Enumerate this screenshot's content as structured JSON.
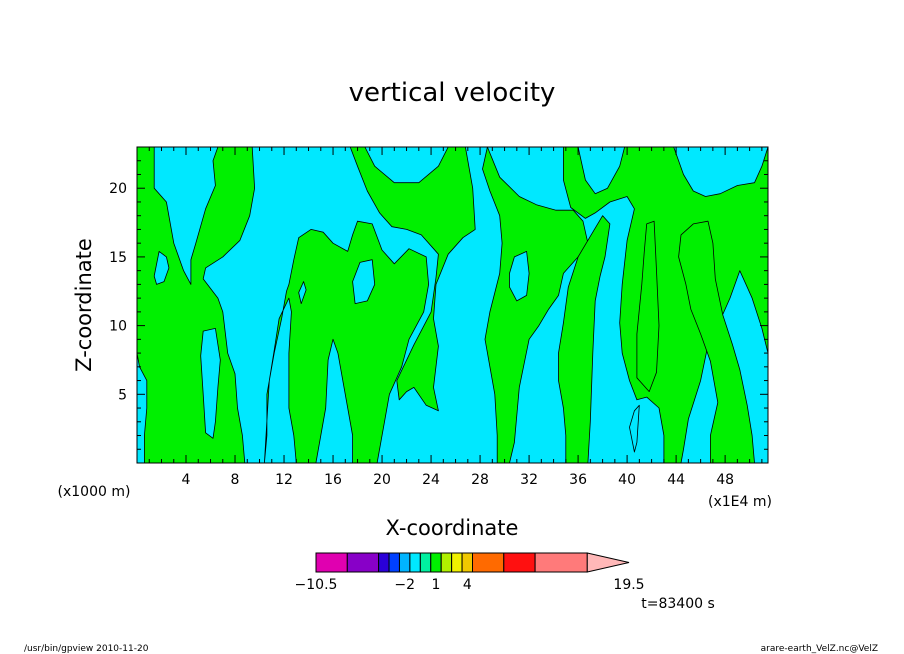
{
  "chart_data": {
    "type": "heatmap",
    "title": "vertical velocity",
    "xlabel": "X-coordinate",
    "ylabel": "Z-coordinate",
    "x_unit_left": "(x1000 m)",
    "x_unit_right": "(x1E4 m)",
    "xlim": [
      0,
      51.5
    ],
    "ylim": [
      0,
      23
    ],
    "x_ticks": [
      4,
      8,
      12,
      16,
      20,
      24,
      28,
      32,
      36,
      40,
      44,
      48
    ],
    "y_ticks": [
      5,
      10,
      15,
      20
    ],
    "grid": false,
    "colorbar": {
      "orientation": "horizontal",
      "min": -10.5,
      "max": 19.5,
      "tick_labels": [
        "-10.5",
        "-2",
        "1",
        "4",
        "19.5"
      ],
      "bins": [
        {
          "from": -10.5,
          "to": -7.5,
          "color": "#e000b0"
        },
        {
          "from": -7.5,
          "to": -4.5,
          "color": "#8800c8"
        },
        {
          "from": -4.5,
          "to": -3.5,
          "color": "#2a00d8"
        },
        {
          "from": -3.5,
          "to": -2.5,
          "color": "#0040ff"
        },
        {
          "from": -2.5,
          "to": -1.5,
          "color": "#00b4ff"
        },
        {
          "from": -1.5,
          "to": -0.5,
          "color": "#00e8ff"
        },
        {
          "from": -0.5,
          "to": 0.5,
          "color": "#00f0a0"
        },
        {
          "from": 0.5,
          "to": 1.5,
          "color": "#00f000"
        },
        {
          "from": 1.5,
          "to": 2.5,
          "color": "#b0f000"
        },
        {
          "from": 2.5,
          "to": 3.5,
          "color": "#f0f000"
        },
        {
          "from": 3.5,
          "to": 4.5,
          "color": "#f0c800"
        },
        {
          "from": 4.5,
          "to": 7.5,
          "color": "#ff6a00"
        },
        {
          "from": 7.5,
          "to": 10.5,
          "color": "#ff1010"
        },
        {
          "from": 10.5,
          "to": 15.5,
          "color": "#ff7a7a"
        },
        {
          "from": 15.5,
          "to": 19.5,
          "color": "#ffb8b8"
        }
      ]
    },
    "field_colors": {
      "negative": "#00e8ff",
      "positive": "#00f000"
    },
    "positive_regions": [
      {
        "name": "column-1",
        "points": [
          [
            0,
            23
          ],
          [
            1.4,
            23
          ],
          [
            1.4,
            20
          ],
          [
            2.4,
            19
          ],
          [
            3,
            16
          ],
          [
            3.8,
            14
          ],
          [
            4.4,
            13
          ],
          [
            4.4,
            14.8
          ],
          [
            4.8,
            16
          ],
          [
            5.6,
            18.5
          ],
          [
            6.4,
            20.2
          ],
          [
            6.2,
            22
          ],
          [
            6.6,
            23
          ],
          [
            9.4,
            23
          ],
          [
            9.6,
            20
          ],
          [
            9.2,
            18
          ],
          [
            8.4,
            16.2
          ],
          [
            7,
            15
          ],
          [
            5.6,
            14.2
          ],
          [
            5.4,
            13.4
          ],
          [
            6.6,
            12
          ],
          [
            7,
            11
          ],
          [
            7.4,
            8
          ],
          [
            8,
            6.5
          ],
          [
            8.2,
            4
          ],
          [
            8.6,
            2
          ],
          [
            8.8,
            0
          ],
          [
            0.6,
            0
          ],
          [
            0.6,
            2
          ],
          [
            0.8,
            4
          ],
          [
            0.8,
            6
          ],
          [
            0.2,
            7
          ],
          [
            0,
            8
          ]
        ]
      },
      {
        "name": "column-2",
        "points": [
          [
            10.4,
            0
          ],
          [
            10.6,
            2
          ],
          [
            10.6,
            5
          ],
          [
            11.2,
            8
          ],
          [
            11.8,
            10.5
          ],
          [
            12.2,
            12.5
          ],
          [
            12.4,
            13
          ],
          [
            12.8,
            14.8
          ],
          [
            13.2,
            16.4
          ],
          [
            14.2,
            17
          ],
          [
            15.2,
            16.8
          ],
          [
            16,
            16
          ],
          [
            17.2,
            15.4
          ],
          [
            17.6,
            16.6
          ],
          [
            18,
            17.6
          ],
          [
            19.2,
            17.4
          ],
          [
            20,
            15.5
          ],
          [
            21,
            14.5
          ],
          [
            22.2,
            15.6
          ],
          [
            23.6,
            15
          ],
          [
            23.8,
            13
          ],
          [
            23.4,
            11
          ],
          [
            22.2,
            9
          ],
          [
            21.6,
            7
          ],
          [
            20.6,
            5
          ],
          [
            20.2,
            3
          ],
          [
            19.6,
            0
          ],
          [
            17.6,
            0
          ],
          [
            17.6,
            2
          ],
          [
            17.2,
            4
          ],
          [
            16.8,
            6
          ],
          [
            16.4,
            8
          ],
          [
            16,
            9
          ],
          [
            15.6,
            7.5
          ],
          [
            15.4,
            4
          ],
          [
            15,
            2
          ],
          [
            14.6,
            0
          ],
          [
            13,
            0
          ],
          [
            12.8,
            2
          ],
          [
            12.4,
            4
          ],
          [
            12.4,
            8
          ],
          [
            12.6,
            11
          ],
          [
            12.4,
            12
          ],
          [
            11.6,
            10.5
          ],
          [
            11.2,
            8.2
          ],
          [
            10.8,
            6
          ]
        ]
      },
      {
        "name": "column-3",
        "points": [
          [
            17.4,
            23
          ],
          [
            18.6,
            23
          ],
          [
            19.4,
            21.6
          ],
          [
            21,
            20.4
          ],
          [
            23,
            20.4
          ],
          [
            24.6,
            21.6
          ],
          [
            25.4,
            23
          ],
          [
            26.8,
            23
          ],
          [
            27.4,
            20
          ],
          [
            27.6,
            17
          ],
          [
            26.6,
            16.4
          ],
          [
            25.4,
            15.2
          ],
          [
            24.4,
            13
          ],
          [
            24.2,
            10.5
          ],
          [
            24.6,
            8.5
          ],
          [
            24.2,
            5.5
          ],
          [
            24.6,
            3.8
          ],
          [
            23.6,
            4.2
          ],
          [
            22.6,
            5.5
          ],
          [
            22,
            5.2
          ],
          [
            21.4,
            4.6
          ],
          [
            21.2,
            6
          ],
          [
            22.6,
            8.6
          ],
          [
            24,
            11
          ],
          [
            24.4,
            13.5
          ],
          [
            24.6,
            15.2
          ],
          [
            23.2,
            16.6
          ],
          [
            22,
            17
          ],
          [
            20.8,
            17.2
          ],
          [
            19.8,
            18.2
          ],
          [
            18.8,
            19.8
          ],
          [
            18,
            21.6
          ]
        ]
      },
      {
        "name": "column-4",
        "points": [
          [
            28.6,
            23
          ],
          [
            29.6,
            20.8
          ],
          [
            31.2,
            19.4
          ],
          [
            32.6,
            18.8
          ],
          [
            34.2,
            18.4
          ],
          [
            35.6,
            18.4
          ],
          [
            36.4,
            17.6
          ],
          [
            36.8,
            16
          ],
          [
            36,
            15
          ],
          [
            34.8,
            13.8
          ],
          [
            34.4,
            12.2
          ],
          [
            33.6,
            11.2
          ],
          [
            32.8,
            10
          ],
          [
            32,
            9
          ],
          [
            31.2,
            5.5
          ],
          [
            30.8,
            1.5
          ],
          [
            30.4,
            0
          ],
          [
            29.4,
            0
          ],
          [
            29.4,
            2
          ],
          [
            29.2,
            5
          ],
          [
            28.8,
            7
          ],
          [
            28.4,
            9
          ],
          [
            28.8,
            11
          ],
          [
            29.6,
            13.8
          ],
          [
            29.8,
            16
          ],
          [
            29.6,
            18
          ],
          [
            28.8,
            19.8
          ],
          [
            28.2,
            21.4
          ]
        ]
      },
      {
        "name": "column-5",
        "points": [
          [
            34.8,
            23
          ],
          [
            36,
            23
          ],
          [
            36.6,
            20.6
          ],
          [
            37.4,
            19.6
          ],
          [
            38.4,
            20
          ],
          [
            39.4,
            21.6
          ],
          [
            39.8,
            23
          ],
          [
            43.8,
            23
          ],
          [
            44.6,
            21
          ],
          [
            45.4,
            19.8
          ],
          [
            46.4,
            19.4
          ],
          [
            47.6,
            19.6
          ],
          [
            49,
            20.2
          ],
          [
            50.4,
            20.4
          ],
          [
            51,
            21.6
          ],
          [
            51.5,
            23
          ],
          [
            51.5,
            8
          ],
          [
            51,
            9.8
          ],
          [
            50.2,
            12
          ],
          [
            49.6,
            13.2
          ],
          [
            49.2,
            14
          ],
          [
            48.4,
            12
          ],
          [
            47.4,
            10
          ],
          [
            46.6,
            8.6
          ],
          [
            46,
            6
          ],
          [
            45,
            3.2
          ],
          [
            44.6,
            1
          ],
          [
            44.4,
            0
          ],
          [
            43,
            0
          ],
          [
            43,
            2
          ],
          [
            42.6,
            4
          ],
          [
            41.6,
            4.8
          ],
          [
            40.8,
            4.6
          ],
          [
            40.2,
            6
          ],
          [
            39.6,
            8
          ],
          [
            39.4,
            10.2
          ],
          [
            39.6,
            13
          ],
          [
            40,
            16.2
          ],
          [
            40.6,
            18.5
          ],
          [
            40,
            19.4
          ],
          [
            38.6,
            19
          ],
          [
            37.4,
            18.2
          ],
          [
            36.6,
            17.8
          ],
          [
            35.4,
            18.6
          ],
          [
            34.8,
            20.6
          ]
        ]
      },
      {
        "name": "column-6",
        "points": [
          [
            36,
            15
          ],
          [
            37,
            16.5
          ],
          [
            38,
            18
          ],
          [
            38.6,
            17.4
          ],
          [
            38.2,
            15
          ],
          [
            37.8,
            13.6
          ],
          [
            37.4,
            11.8
          ],
          [
            37.2,
            8
          ],
          [
            37,
            3
          ],
          [
            36.8,
            0
          ],
          [
            35,
            0
          ],
          [
            35,
            2
          ],
          [
            34.8,
            4
          ],
          [
            34.4,
            6
          ],
          [
            34.4,
            8
          ],
          [
            34.8,
            10.2
          ],
          [
            35.2,
            12.8
          ]
        ]
      },
      {
        "name": "column-7",
        "points": [
          [
            41.6,
            17.4
          ],
          [
            42.2,
            17.6
          ],
          [
            42.4,
            14
          ],
          [
            42.6,
            10
          ],
          [
            42.4,
            6.6
          ],
          [
            41.8,
            5.2
          ],
          [
            40.8,
            6.2
          ],
          [
            40.8,
            9.4
          ],
          [
            41.2,
            13
          ],
          [
            41.4,
            15.4
          ]
        ]
      },
      {
        "name": "column-8",
        "points": [
          [
            44.4,
            16.6
          ],
          [
            45.4,
            17.4
          ],
          [
            46.6,
            17.6
          ],
          [
            47,
            16
          ],
          [
            47.2,
            13.4
          ],
          [
            47.8,
            10.8
          ],
          [
            48.6,
            8.6
          ],
          [
            49.2,
            6.8
          ],
          [
            49.8,
            4.2
          ],
          [
            50.2,
            2
          ],
          [
            50.4,
            0
          ],
          [
            46.8,
            0
          ],
          [
            46.8,
            2
          ],
          [
            47.4,
            4.4
          ],
          [
            46.8,
            7.4
          ],
          [
            46,
            9.4
          ],
          [
            45.2,
            11.2
          ],
          [
            44.8,
            13
          ],
          [
            44.2,
            15
          ]
        ]
      }
    ],
    "negative_islands": [
      {
        "name": "island-a",
        "points": [
          [
            5.4,
            9.6
          ],
          [
            6.4,
            9.8
          ],
          [
            6.8,
            7.5
          ],
          [
            6.6,
            5.5
          ],
          [
            6.4,
            3
          ],
          [
            6.2,
            1.8
          ],
          [
            5.6,
            2.2
          ],
          [
            5.4,
            5
          ],
          [
            5.2,
            7.8
          ]
        ]
      },
      {
        "name": "island-b",
        "points": [
          [
            17.6,
            13.2
          ],
          [
            18.2,
            14.6
          ],
          [
            19.2,
            14.8
          ],
          [
            19.4,
            13
          ],
          [
            18.8,
            11.8
          ],
          [
            17.8,
            11.6
          ]
        ]
      },
      {
        "name": "island-c",
        "points": [
          [
            30.4,
            13.8
          ],
          [
            30.8,
            15
          ],
          [
            31.8,
            15.4
          ],
          [
            32,
            13.8
          ],
          [
            31.8,
            12.2
          ],
          [
            31,
            11.8
          ],
          [
            30.4,
            12.8
          ]
        ]
      },
      {
        "name": "island-d",
        "points": [
          [
            1.4,
            13.6
          ],
          [
            1.8,
            15.4
          ],
          [
            2.4,
            15
          ],
          [
            2.6,
            14.2
          ],
          [
            2.2,
            13.2
          ],
          [
            1.6,
            13
          ]
        ]
      },
      {
        "name": "island-e",
        "points": [
          [
            40.6,
            3.8
          ],
          [
            41,
            4.2
          ],
          [
            40.8,
            1.5
          ],
          [
            40.6,
            0.8
          ],
          [
            40.2,
            2.6
          ]
        ]
      },
      {
        "name": "island-f",
        "points": [
          [
            13.2,
            12.4
          ],
          [
            13.6,
            13.2
          ],
          [
            13.8,
            12.6
          ],
          [
            13.4,
            11.6
          ]
        ]
      }
    ]
  },
  "time_label": "t=83400 s",
  "footer_left": "/usr/bin/gpview   2010-11-20",
  "footer_right": "arare-earth_VelZ.nc@VelZ"
}
